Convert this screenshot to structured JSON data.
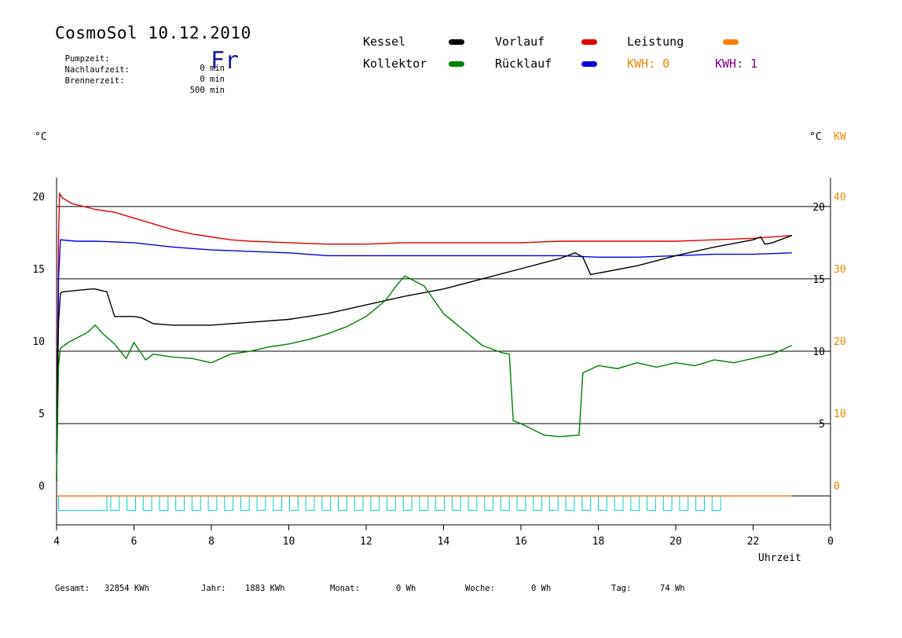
{
  "header": {
    "title": "CosmoSol 10.12.2010",
    "day": "Fr",
    "info": [
      {
        "label": "Pumpzeit:",
        "value": "0 min"
      },
      {
        "label": "Nachlaufzeit:",
        "value": "0 min"
      },
      {
        "label": "Brennerzeit:",
        "value": "500 min"
      }
    ]
  },
  "legend": {
    "items": [
      {
        "label": "Kessel",
        "color": "#000000"
      },
      {
        "label": "Kollektor",
        "color": "#008000"
      },
      {
        "label": "Vorlauf",
        "color": "#e00000"
      },
      {
        "label": "Rücklauf",
        "color": "#0000e0"
      },
      {
        "label": "Leistung",
        "color": "#ff8000"
      }
    ],
    "kwh0": "KWH: 0",
    "kwh1": "KWH: 1",
    "kwh0_color": "#e08a00",
    "kwh1_color": "#800080"
  },
  "footer": {
    "gesamt_label": "Gesamt:",
    "gesamt_value": "32854 KWh",
    "jahr_label": "Jahr:",
    "jahr_value": "1883 KWh",
    "monat_label": "Monat:",
    "monat_value": "0 Wh",
    "woche_label": "Woche:",
    "woche_value": "0 Wh",
    "tag_label": "Tag:",
    "tag_value": "74 Wh"
  },
  "chart_data": {
    "type": "line",
    "xlabel": "Uhrzeit",
    "ylabel_left": "°C",
    "ylabel_right": "°C",
    "ylabel_right2": "KW",
    "x_ticks": [
      "4",
      "6",
      "8",
      "10",
      "12",
      "14",
      "16",
      "18",
      "20",
      "22",
      "0"
    ],
    "xlim": [
      4,
      24
    ],
    "ylim_left": [
      -2,
      22
    ],
    "left_ticks": [
      0,
      5,
      10,
      15,
      20
    ],
    "right_ticks": [
      5,
      10,
      15,
      20
    ],
    "kw_ticks": [
      0,
      10,
      20,
      30,
      40
    ],
    "grid_lines": [
      5,
      10,
      15,
      20
    ],
    "series": [
      {
        "name": "Vorlauf",
        "color": "#e00000",
        "x": [
          4.0,
          4.05,
          4.08,
          4.15,
          4.4,
          5.0,
          5.5,
          6.0,
          6.5,
          7.0,
          7.5,
          8.0,
          8.5,
          9.0,
          10.0,
          11.0,
          12.0,
          13.0,
          14.0,
          15.0,
          16.0,
          17.0,
          18.0,
          19.0,
          20.0,
          21.0,
          22.0,
          23.0
        ],
        "y": [
          1.0,
          18.0,
          20.9,
          20.6,
          20.2,
          19.8,
          19.6,
          19.2,
          18.8,
          18.4,
          18.1,
          17.9,
          17.7,
          17.6,
          17.5,
          17.4,
          17.4,
          17.5,
          17.5,
          17.5,
          17.5,
          17.6,
          17.6,
          17.6,
          17.6,
          17.7,
          17.8,
          18.0
        ]
      },
      {
        "name": "Rücklauf",
        "color": "#0000e0",
        "x": [
          4.0,
          4.05,
          4.1,
          4.5,
          5.0,
          6.0,
          7.0,
          8.0,
          9.0,
          10.0,
          11.0,
          12.0,
          13.0,
          14.0,
          15.0,
          16.0,
          17.0,
          18.0,
          19.0,
          20.0,
          21.0,
          22.0,
          23.0
        ],
        "y": [
          1.0,
          15.0,
          17.7,
          17.6,
          17.6,
          17.5,
          17.2,
          17.0,
          16.9,
          16.8,
          16.6,
          16.6,
          16.6,
          16.6,
          16.6,
          16.6,
          16.6,
          16.5,
          16.5,
          16.6,
          16.7,
          16.7,
          16.8
        ]
      },
      {
        "name": "Kessel",
        "color": "#000000",
        "x": [
          4.0,
          4.05,
          4.1,
          4.15,
          4.5,
          4.9,
          5.0,
          5.3,
          5.5,
          6.0,
          6.2,
          6.5,
          7.0,
          8.0,
          9.0,
          10.0,
          11.0,
          12.0,
          13.0,
          14.0,
          15.0,
          16.0,
          17.0,
          17.4,
          17.6,
          17.8,
          18.0,
          19.0,
          20.0,
          21.0,
          22.0,
          22.2,
          22.3,
          22.5,
          23.0
        ],
        "y": [
          3.0,
          12.0,
          14.0,
          14.1,
          14.2,
          14.3,
          14.3,
          14.1,
          12.4,
          12.4,
          12.3,
          11.9,
          11.8,
          11.8,
          12.0,
          12.2,
          12.6,
          13.2,
          13.8,
          14.3,
          15.0,
          15.7,
          16.4,
          16.8,
          16.5,
          15.3,
          15.4,
          15.9,
          16.6,
          17.2,
          17.7,
          17.9,
          17.4,
          17.5,
          18.0
        ]
      },
      {
        "name": "Kollektor",
        "color": "#008000",
        "x": [
          4.0,
          4.05,
          4.1,
          4.3,
          4.8,
          5.0,
          5.2,
          5.5,
          5.8,
          6.0,
          6.3,
          6.5,
          7.0,
          7.5,
          8.0,
          8.5,
          9.0,
          9.5,
          10.0,
          10.5,
          11.0,
          11.5,
          12.0,
          12.5,
          12.8,
          13.0,
          13.5,
          14.0,
          14.5,
          15.0,
          15.5,
          15.7,
          15.8,
          16.0,
          16.3,
          16.6,
          17.0,
          17.5,
          17.6,
          18.0,
          18.5,
          19.0,
          19.5,
          20.0,
          20.5,
          21.0,
          21.5,
          22.0,
          22.5,
          23.0
        ],
        "y": [
          1.0,
          9.0,
          10.2,
          10.6,
          11.3,
          11.8,
          11.2,
          10.5,
          9.5,
          10.6,
          9.4,
          9.8,
          9.6,
          9.5,
          9.2,
          9.8,
          10.0,
          10.3,
          10.5,
          10.8,
          11.2,
          11.7,
          12.4,
          13.5,
          14.6,
          15.2,
          14.5,
          12.6,
          11.5,
          10.4,
          9.9,
          9.8,
          5.2,
          5.0,
          4.6,
          4.2,
          4.1,
          4.2,
          8.5,
          9.0,
          8.8,
          9.2,
          8.9,
          9.2,
          9.0,
          9.4,
          9.2,
          9.5,
          9.8,
          10.4
        ]
      },
      {
        "name": "Leistung",
        "color": "#ff8000",
        "x": [
          4.0,
          23.0
        ],
        "y": [
          0.0,
          0.0
        ]
      }
    ]
  }
}
